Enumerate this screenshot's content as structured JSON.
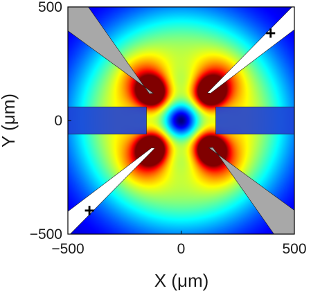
{
  "chart_data": {
    "type": "heatmap",
    "title": "",
    "xlabel": "X (μm)",
    "ylabel": "Y (μm)",
    "xlim": [
      -500,
      500
    ],
    "ylim": [
      -500,
      500
    ],
    "x_ticks": [
      -500,
      0,
      500
    ],
    "y_ticks": [
      -500,
      0,
      500
    ],
    "colormap": "jet",
    "grid": false,
    "electrodes": [
      {
        "name": "",
        "label": "+",
        "fill": "white",
        "polygon": [
          [
            490,
            500
          ],
          [
            500,
            500
          ],
          [
            500,
            400
          ],
          [
            130,
            120
          ],
          [
            116,
            122
          ]
        ],
        "label_at": [
          395,
          385
        ]
      },
      {
        "name": "",
        "label": "+",
        "fill": "white",
        "polygon": [
          [
            -490,
            -500
          ],
          [
            -500,
            -500
          ],
          [
            -500,
            -400
          ],
          [
            -130,
            -120
          ],
          [
            -116,
            -122
          ]
        ],
        "label_at": [
          -405,
          -395
        ]
      },
      {
        "name": "",
        "label": "",
        "fill": "#a8a8a8",
        "polygon": [
          [
            -500,
            500
          ],
          [
            -500,
            395
          ],
          [
            -125,
            122
          ],
          [
            -122,
            120
          ],
          [
            -140,
            118
          ],
          [
            -410,
            500
          ]
        ]
      },
      {
        "name": "",
        "label": "",
        "fill": "#a8a8a8",
        "polygon": [
          [
            500,
            -500
          ],
          [
            500,
            -395
          ],
          [
            125,
            -122
          ],
          [
            122,
            -120
          ],
          [
            140,
            -118
          ],
          [
            410,
            -500
          ]
        ]
      },
      {
        "name": "",
        "label": "",
        "fill": "blue",
        "polygon": [
          [
            -500,
            60
          ],
          [
            -153,
            60
          ],
          [
            -153,
            -60
          ],
          [
            -500,
            -60
          ]
        ]
      },
      {
        "name": "",
        "label": "",
        "fill": "blue",
        "polygon": [
          [
            153,
            60
          ],
          [
            500,
            60
          ],
          [
            500,
            -60
          ],
          [
            153,
            -60
          ]
        ]
      }
    ]
  }
}
